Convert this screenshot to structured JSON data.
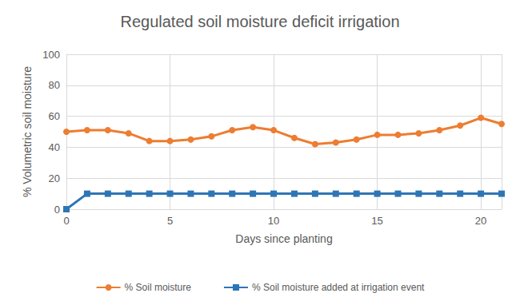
{
  "chart_data": {
    "type": "line",
    "title": "Regulated soil moisture deficit irrigation",
    "x_label": "Days since planting",
    "y_label": "% Volumetric soil moisture",
    "x": [
      0,
      1,
      2,
      3,
      4,
      5,
      6,
      7,
      8,
      9,
      10,
      11,
      12,
      13,
      14,
      15,
      16,
      17,
      18,
      19,
      20,
      21
    ],
    "series": [
      {
        "name": "% Soil moisture",
        "color": "#ed7d31",
        "marker": "circle",
        "line_style": "solid",
        "values": [
          50,
          51,
          51,
          49,
          44,
          44,
          45,
          47,
          51,
          53,
          51,
          46,
          42,
          43,
          45,
          48,
          48,
          49,
          51,
          54,
          59,
          55
        ]
      },
      {
        "name": "% Soil moisture added at irrigation event",
        "color": "#2e75b6",
        "marker": "square",
        "line_style": "solid",
        "values": [
          0,
          10,
          10,
          10,
          10,
          10,
          10,
          10,
          10,
          10,
          10,
          10,
          10,
          10,
          10,
          10,
          10,
          10,
          10,
          10,
          10,
          10
        ]
      }
    ],
    "xlim": [
      0,
      21
    ],
    "xticks": [
      0,
      5,
      10,
      15,
      20
    ],
    "ylim": [
      0,
      100
    ],
    "yticks": [
      0,
      20,
      40,
      60,
      80,
      100
    ],
    "grid": true,
    "legend": "bottom"
  }
}
